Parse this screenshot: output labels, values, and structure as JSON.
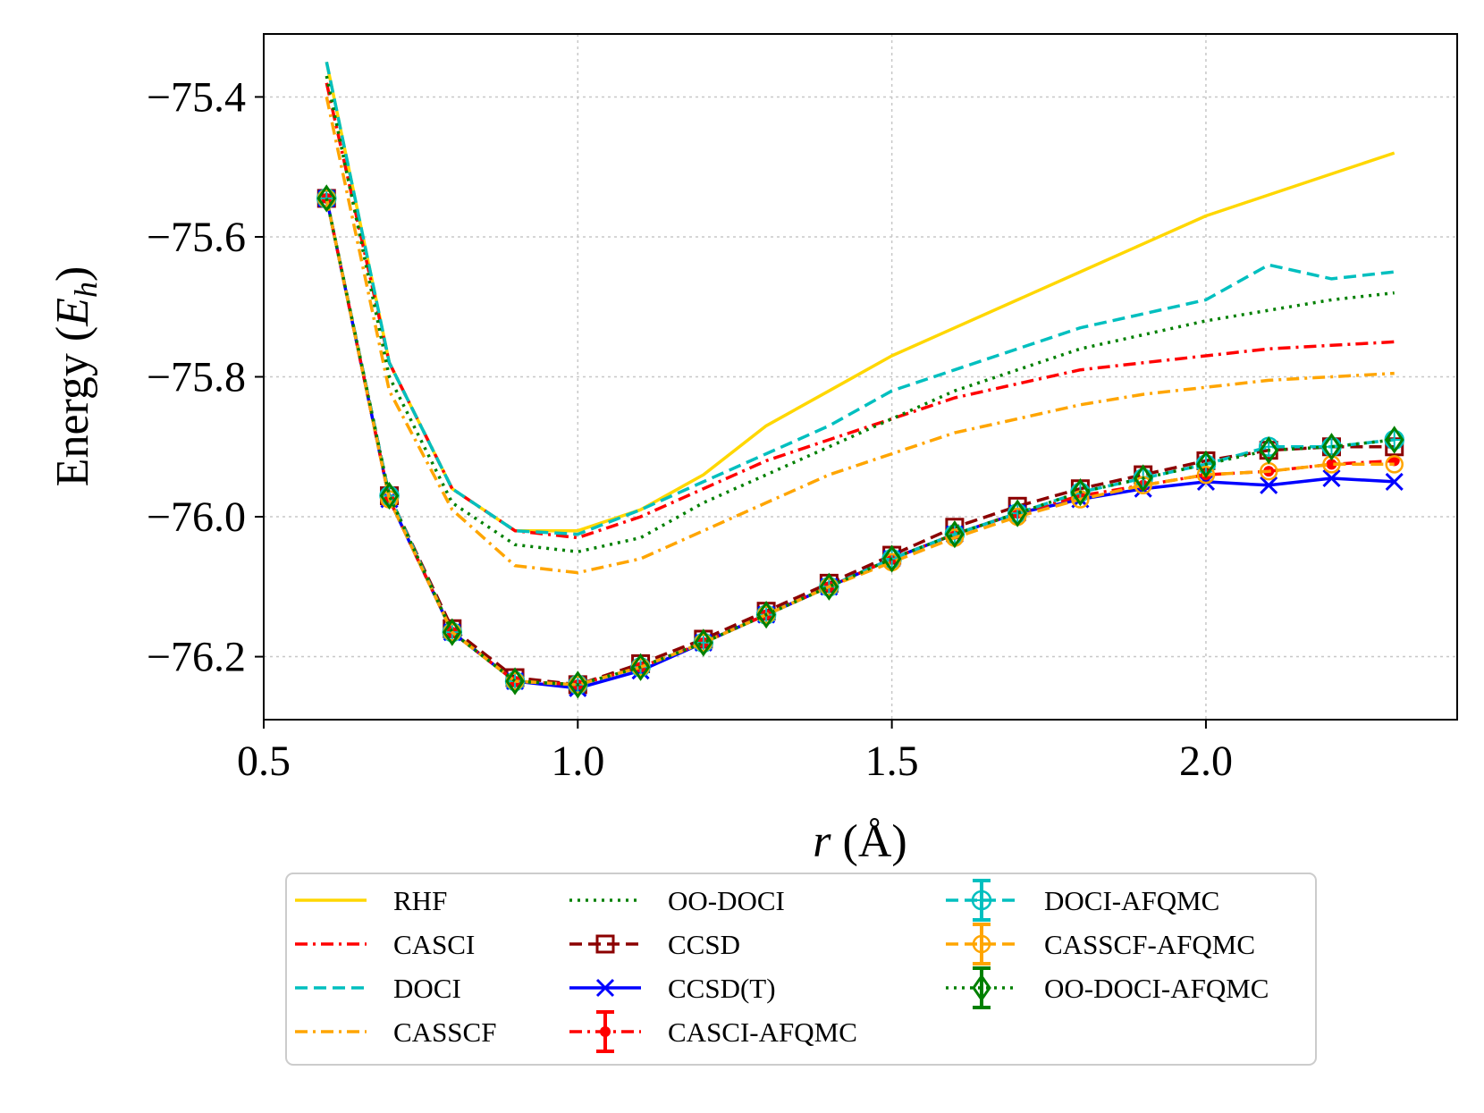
{
  "chart_data": {
    "type": "line",
    "xlabel": "r (Å)",
    "ylabel": "Energy (E_h)",
    "xlim": [
      0.5,
      2.4
    ],
    "ylim": [
      -76.29,
      -75.31
    ],
    "xticks": [
      0.5,
      1.0,
      1.5,
      2.0
    ],
    "xtick_labels": [
      "0.5",
      "1.0",
      "1.5",
      "2.0"
    ],
    "yticks": [
      -75.4,
      -75.6,
      -75.8,
      -76.0,
      -76.2
    ],
    "ytick_labels": [
      "−75.4",
      "−75.6",
      "−75.8",
      "−76.0",
      "−76.2"
    ],
    "grid": true,
    "legend_position": "below",
    "series": [
      {
        "name": "RHF",
        "color": "#FFD700",
        "dash": "solid",
        "marker": "none",
        "x": [
          0.6,
          0.7,
          0.8,
          0.9,
          1.0,
          1.1,
          1.2,
          1.3,
          1.4,
          1.5,
          1.6,
          1.7,
          1.8,
          1.9,
          2.0,
          2.1,
          2.2,
          2.3
        ],
        "y": [
          -75.35,
          -75.78,
          -75.96,
          -76.02,
          -76.02,
          -75.99,
          -75.94,
          -75.87,
          -75.82,
          -75.77,
          -75.73,
          -75.69,
          -75.65,
          -75.61,
          -75.57,
          -75.54,
          -75.51,
          -75.48
        ]
      },
      {
        "name": "CASCI",
        "color": "#FF0000",
        "dash": "dashdot",
        "marker": "none",
        "x": [
          0.6,
          0.7,
          0.8,
          0.9,
          1.0,
          1.1,
          1.2,
          1.3,
          1.4,
          1.5,
          1.6,
          1.7,
          1.8,
          1.9,
          2.0,
          2.1,
          2.2,
          2.3
        ],
        "y": [
          -75.38,
          -75.78,
          -75.96,
          -76.02,
          -76.03,
          -76.0,
          -75.96,
          -75.92,
          -75.89,
          -75.86,
          -75.83,
          -75.81,
          -75.79,
          -75.78,
          -75.77,
          -75.76,
          -75.755,
          -75.75
        ]
      },
      {
        "name": "DOCI",
        "color": "#00BFBF",
        "dash": "dashed",
        "marker": "none",
        "x": [
          0.6,
          0.7,
          0.8,
          0.9,
          1.0,
          1.1,
          1.2,
          1.3,
          1.4,
          1.5,
          1.6,
          1.7,
          1.8,
          1.9,
          2.0,
          2.1,
          2.2,
          2.3
        ],
        "y": [
          -75.35,
          -75.78,
          -75.96,
          -76.02,
          -76.025,
          -75.99,
          -75.95,
          -75.91,
          -75.87,
          -75.82,
          -75.79,
          -75.76,
          -75.73,
          -75.71,
          -75.69,
          -75.64,
          -75.66,
          -75.65
        ]
      },
      {
        "name": "CASSCF",
        "color": "#FFA500",
        "dash": "dashdot",
        "marker": "none",
        "x": [
          0.6,
          0.7,
          0.8,
          0.9,
          1.0,
          1.1,
          1.2,
          1.3,
          1.4,
          1.5,
          1.6,
          1.7,
          1.8,
          1.9,
          2.0,
          2.1,
          2.2,
          2.3
        ],
        "y": [
          -75.4,
          -75.82,
          -75.99,
          -76.07,
          -76.08,
          -76.06,
          -76.02,
          -75.98,
          -75.94,
          -75.91,
          -75.88,
          -75.86,
          -75.84,
          -75.825,
          -75.815,
          -75.805,
          -75.8,
          -75.795
        ]
      },
      {
        "name": "OO-DOCI",
        "color": "#008000",
        "dash": "dotted",
        "marker": "none",
        "x": [
          0.6,
          0.7,
          0.8,
          0.9,
          1.0,
          1.1,
          1.2,
          1.3,
          1.4,
          1.5,
          1.6,
          1.7,
          1.8,
          1.9,
          2.0,
          2.1,
          2.2,
          2.3
        ],
        "y": [
          -75.37,
          -75.8,
          -75.98,
          -76.04,
          -76.05,
          -76.03,
          -75.98,
          -75.94,
          -75.9,
          -75.86,
          -75.82,
          -75.79,
          -75.76,
          -75.74,
          -75.72,
          -75.705,
          -75.69,
          -75.68
        ]
      },
      {
        "name": "CCSD",
        "color": "#8B0000",
        "dash": "dashed",
        "marker": "square",
        "x": [
          0.6,
          0.7,
          0.8,
          0.9,
          1.0,
          1.1,
          1.2,
          1.3,
          1.4,
          1.5,
          1.6,
          1.7,
          1.8,
          1.9,
          2.0,
          2.1,
          2.2,
          2.3
        ],
        "y": [
          -75.545,
          -75.97,
          -76.16,
          -76.23,
          -76.24,
          -76.21,
          -76.175,
          -76.135,
          -76.095,
          -76.055,
          -76.015,
          -75.985,
          -75.96,
          -75.94,
          -75.92,
          -75.905,
          -75.9,
          -75.9
        ]
      },
      {
        "name": "CCSD(T)",
        "color": "#0000FF",
        "dash": "solid",
        "marker": "x",
        "x": [
          0.6,
          0.7,
          0.8,
          0.9,
          1.0,
          1.1,
          1.2,
          1.3,
          1.4,
          1.5,
          1.6,
          1.7,
          1.8,
          1.9,
          2.0,
          2.1,
          2.2,
          2.3
        ],
        "y": [
          -75.545,
          -75.975,
          -76.165,
          -76.235,
          -76.245,
          -76.22,
          -76.18,
          -76.14,
          -76.1,
          -76.06,
          -76.025,
          -75.995,
          -75.975,
          -75.96,
          -75.95,
          -75.955,
          -75.945,
          -75.95
        ]
      },
      {
        "name": "CASCI-AFQMC",
        "color": "#FF0000",
        "dash": "dashdot",
        "marker": "dot",
        "x": [
          0.6,
          0.7,
          0.8,
          0.9,
          1.0,
          1.1,
          1.2,
          1.3,
          1.4,
          1.5,
          1.6,
          1.7,
          1.8,
          1.9,
          2.0,
          2.1,
          2.2,
          2.3
        ],
        "y": [
          -75.545,
          -75.975,
          -76.165,
          -76.235,
          -76.24,
          -76.215,
          -76.18,
          -76.14,
          -76.1,
          -76.06,
          -76.025,
          -75.995,
          -75.97,
          -75.955,
          -75.94,
          -75.935,
          -75.925,
          -75.92
        ]
      },
      {
        "name": "DOCI-AFQMC",
        "color": "#00BFBF",
        "dash": "dashed",
        "marker": "circle-plus",
        "x": [
          0.6,
          0.7,
          0.8,
          0.9,
          1.0,
          1.1,
          1.2,
          1.3,
          1.4,
          1.5,
          1.6,
          1.7,
          1.8,
          1.9,
          2.0,
          2.1,
          2.2,
          2.3
        ],
        "y": [
          -75.545,
          -75.97,
          -76.165,
          -76.235,
          -76.24,
          -76.215,
          -76.18,
          -76.14,
          -76.1,
          -76.06,
          -76.025,
          -75.995,
          -75.965,
          -75.945,
          -75.925,
          -75.9,
          -75.9,
          -75.89
        ]
      },
      {
        "name": "CASSCF-AFQMC",
        "color": "#FFA500",
        "dash": "dashed",
        "marker": "circle",
        "x": [
          0.6,
          0.7,
          0.8,
          0.9,
          1.0,
          1.1,
          1.2,
          1.3,
          1.4,
          1.5,
          1.6,
          1.7,
          1.8,
          1.9,
          2.0,
          2.1,
          2.2,
          2.3
        ],
        "y": [
          -75.545,
          -75.975,
          -76.165,
          -76.235,
          -76.24,
          -76.215,
          -76.18,
          -76.14,
          -76.1,
          -76.065,
          -76.03,
          -76.0,
          -75.975,
          -75.955,
          -75.94,
          -75.935,
          -75.925,
          -75.925
        ]
      },
      {
        "name": "OO-DOCI-AFQMC",
        "color": "#008000",
        "dash": "dotted",
        "marker": "diamond",
        "x": [
          0.6,
          0.7,
          0.8,
          0.9,
          1.0,
          1.1,
          1.2,
          1.3,
          1.4,
          1.5,
          1.6,
          1.7,
          1.8,
          1.9,
          2.0,
          2.1,
          2.2,
          2.3
        ],
        "y": [
          -75.545,
          -75.97,
          -76.165,
          -76.235,
          -76.24,
          -76.215,
          -76.18,
          -76.14,
          -76.1,
          -76.06,
          -76.025,
          -75.995,
          -75.965,
          -75.945,
          -75.925,
          -75.905,
          -75.9,
          -75.89
        ]
      }
    ]
  }
}
